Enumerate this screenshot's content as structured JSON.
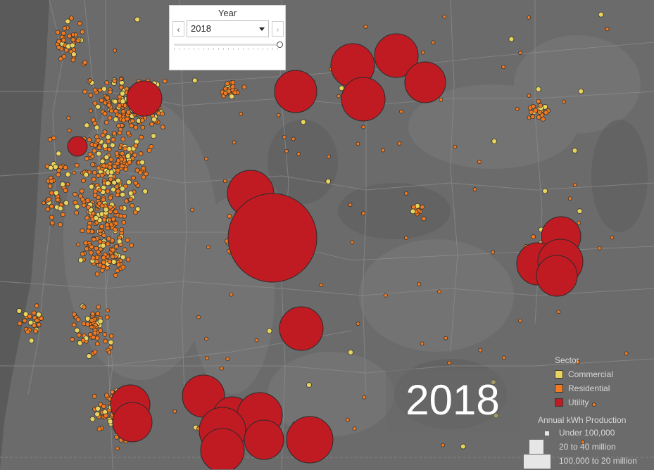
{
  "filter": {
    "title": "Year",
    "selected": "2018",
    "prev_icon": "chevron-left-icon",
    "next_icon": "chevron-right-icon",
    "dropdown_icon": "caret-down-icon"
  },
  "overlay_year": "2018",
  "legend": {
    "title": "Sector",
    "items": [
      {
        "label": "Commercial",
        "color": "#e8d35e"
      },
      {
        "label": "Residential",
        "color": "#f07a21"
      },
      {
        "label": "Utility",
        "color": "#c01b23"
      }
    ]
  },
  "size_legend": {
    "title": "Annual kWh Production",
    "items": [
      {
        "label": "Under 100,000"
      },
      {
        "label": "20 to 40 million"
      },
      {
        "label": "100,000 to 20 million"
      }
    ]
  },
  "colors": {
    "commercial": "#e8d35e",
    "residential": "#f07a21",
    "utility": "#c01b23",
    "background": "#6b6b6b"
  }
}
